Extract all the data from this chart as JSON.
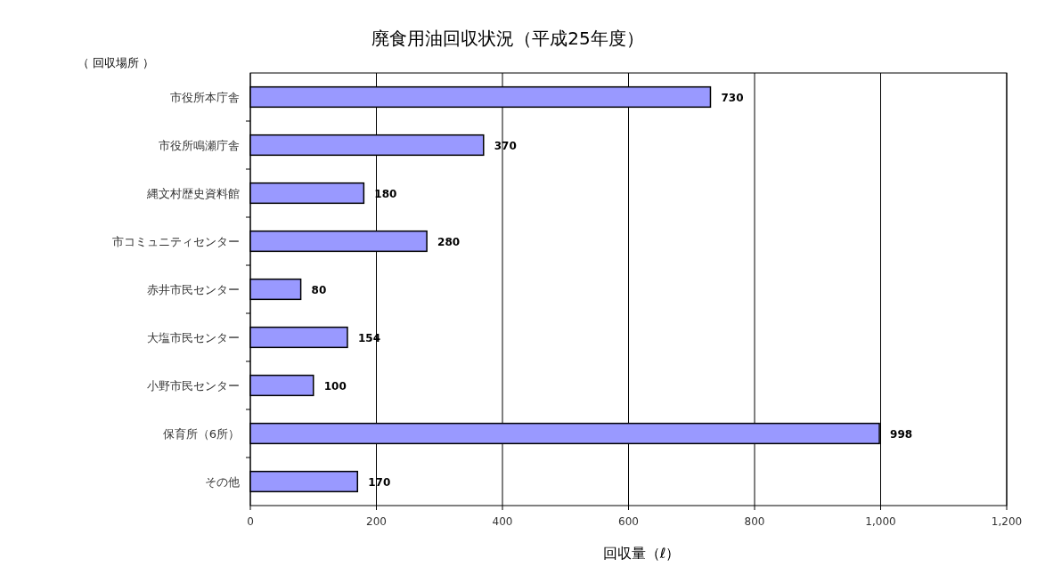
{
  "chart_data": {
    "type": "bar",
    "orientation": "horizontal",
    "title": "廃食用油回収状況（平成25年度）",
    "ylabel": "（ 回収場所 ）",
    "xlabel": "回収量（ℓ）",
    "categories": [
      "市役所本庁舎",
      "市役所鳴瀬庁舎",
      "縄文村歴史資料館",
      "市コミュニティセンター",
      "赤井市民センター",
      "大塩市民センター",
      "小野市民センター",
      "保育所（6所）",
      "その他"
    ],
    "values": [
      730,
      370,
      180,
      280,
      80,
      154,
      100,
      998,
      170
    ],
    "color": "#9999ff",
    "data_labels": true,
    "grid": "x",
    "xlim": [
      0,
      1200
    ],
    "xticks": [
      0,
      200,
      400,
      600,
      800,
      {
        "value": 1000,
        "label": "1,000"
      },
      {
        "value": 1200,
        "label": "1,200"
      }
    ]
  }
}
